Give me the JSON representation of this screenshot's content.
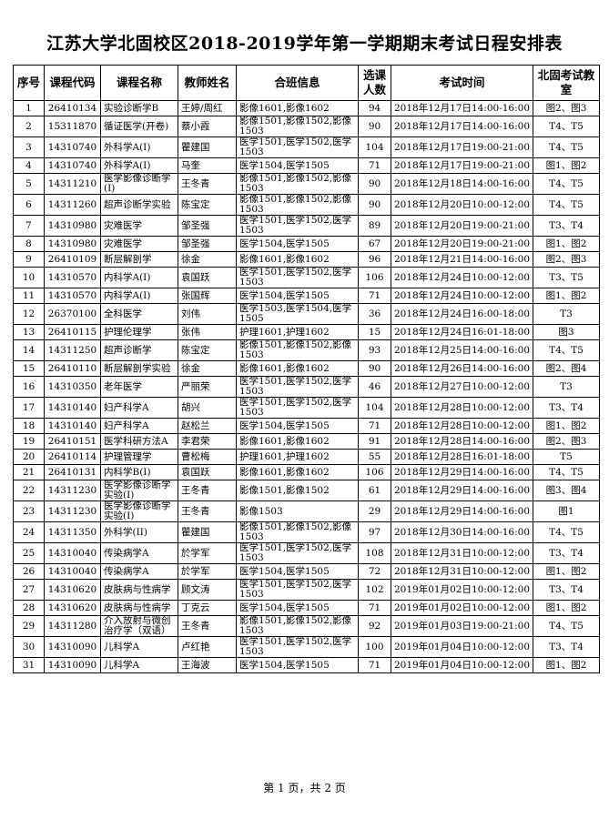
{
  "title": "江苏大学北固校区2018-2019学年第一学期期末考试日程安排表",
  "columns": [
    "序号",
    "课程代码",
    "课程名称",
    "教师姓名",
    "合班信息",
    "选课人数",
    "考试时间",
    "北固考试教　室"
  ],
  "rows": [
    [
      "1",
      "26410134",
      "实验诊断学B",
      "王婷/周红",
      "影像1601,影像1602",
      "94",
      "2018年12月17日14:00-16:00",
      "图2、图3"
    ],
    [
      "2",
      "15311870",
      "循证医学(开卷)",
      "蔡小霞",
      "影像1501,影像1502,影像1503",
      "90",
      "2018年12月17日14:00-16:00",
      "T4、T5"
    ],
    [
      "3",
      "14310740",
      "外科学A(I)",
      "瞿建国",
      "医学1501,医学1502,医学1503",
      "104",
      "2018年12月17日19:00-21:00",
      "T4、T5"
    ],
    [
      "4",
      "14310740",
      "外科学A(I)",
      "马奎",
      "医学1504,医学1505",
      "71",
      "2018年12月17日19:00-21:00",
      "图1、图2"
    ],
    [
      "5",
      "14311210",
      "医学影像诊断学(I)",
      "王冬青",
      "影像1501,影像1502,影像1503",
      "90",
      "2018年12月18日14:00-16:00",
      "T4、T5"
    ],
    [
      "6",
      "14311260",
      "超声诊断学实验",
      "陈宝定",
      "影像1501,影像1502,影像1503",
      "90",
      "2018年12月20日10:00-12:00",
      "T4、T5"
    ],
    [
      "7",
      "14310980",
      "灾难医学",
      "邹圣强",
      "医学1501,医学1502,医学1503",
      "89",
      "2018年12月20日19:00-21:00",
      "T3、T4"
    ],
    [
      "8",
      "14310980",
      "灾难医学",
      "邹圣强",
      "医学1504,医学1505",
      "67",
      "2018年12月20日19:00-21:00",
      "图1、图2"
    ],
    [
      "9",
      "26410109",
      "断层解剖学",
      "徐金",
      "影像1601,影像1602",
      "96",
      "2018年12月21日14:00-16:00",
      "图2、图3"
    ],
    [
      "10",
      "14310570",
      "内科学A(I)",
      "袁国跃",
      "医学1501,医学1502,医学1503",
      "106",
      "2018年12月24日10:00-12:00",
      "T3、T5"
    ],
    [
      "11",
      "14310570",
      "内科学A(I)",
      "张国辉",
      "医学1504,医学1505",
      "71",
      "2018年12月24日10:00-12:00",
      "图1、图2"
    ],
    [
      "12",
      "26370100",
      "全科医学",
      "刘伟",
      "医学1503,医学1504,医学1505",
      "36",
      "2018年12月24日16:00-18:00",
      "T3"
    ],
    [
      "13",
      "26410115",
      "护理伦理学",
      "张伟",
      "护理1601,护理1602",
      "15",
      "2018年12月24日16:01-18:00",
      "图3"
    ],
    [
      "14",
      "14311250",
      "超声诊断学",
      "陈宝定",
      "影像1501,影像1502,影像1503",
      "93",
      "2018年12月25日14:00-16:00",
      "T4、T5"
    ],
    [
      "15",
      "26410110",
      "断层解剖学实验",
      "徐金",
      "影像1601,影像1602",
      "90",
      "2018年12月26日14:00-16:00",
      "图2、图4"
    ],
    [
      "16",
      "14310350",
      "老年医学",
      "严丽荣",
      "医学1501,医学1502,医学1503",
      "46",
      "2018年12月27日10:00-12:00",
      "T3"
    ],
    [
      "17",
      "14310140",
      "妇产科学A",
      "胡兴",
      "医学1501,医学1502,医学1503",
      "104",
      "2018年12月28日10:00-12:00",
      "T3、T4"
    ],
    [
      "18",
      "14310140",
      "妇产科学A",
      "赵松兰",
      "医学1504,医学1505",
      "71",
      "2018年12月28日10:00-12:00",
      "图1、图2"
    ],
    [
      "19",
      "26410151",
      "医学科研方法A",
      "李君荣",
      "影像1601,影像1602",
      "91",
      "2018年12月28日14:00-16:00",
      "图2、图3"
    ],
    [
      "20",
      "26410114",
      "护理管理学",
      "曹松梅",
      "护理1601,护理1602",
      "55",
      "2018年12月28日16:01-18:00",
      "T5"
    ],
    [
      "21",
      "26410131",
      "内科学B(I)",
      "袁国跃",
      "影像1601,影像1602",
      "106",
      "2018年12月29日14:00-16:00",
      "T4、T5"
    ],
    [
      "22",
      "14311230",
      "医学影像诊断学实验(I)",
      "王冬青",
      "影像1501,影像1502",
      "61",
      "2018年12月29日14:00-16:00",
      "图3、图4"
    ],
    [
      "23",
      "14311230",
      "医学影像诊断学实验(I)",
      "王冬青",
      "影像1503",
      "29",
      "2018年12月29日14:00-16:00",
      "图1"
    ],
    [
      "24",
      "14311350",
      "外科学(II)",
      "瞿建国",
      "影像1501,影像1502,影像1503",
      "97",
      "2018年12月30日14:00-16:00",
      "T4、T5"
    ],
    [
      "25",
      "14310040",
      "传染病学A",
      "於学军",
      "医学1501,医学1502,医学1503",
      "108",
      "2018年12月31日10:00-12:00",
      "T3、T4"
    ],
    [
      "26",
      "14310040",
      "传染病学A",
      "於学军",
      "医学1504,医学1505",
      "72",
      "2018年12月31日10:00-12:00",
      "图1、图2"
    ],
    [
      "27",
      "14310620",
      "皮肤病与性病学",
      "顾文涛",
      "医学1501,医学1502,医学1503",
      "102",
      "2019年01月02日10:00-12:00",
      "T3、T4"
    ],
    [
      "28",
      "14310620",
      "皮肤病与性病学",
      "丁克云",
      "医学1504,医学1505",
      "71",
      "2019年01月02日10:00-12:00",
      "图1、图2"
    ],
    [
      "29",
      "14311280",
      "介入放射与微创治疗学（双语）",
      "王冬青",
      "影像1501,影像1502,影像1503",
      "92",
      "2019年01月03日19:00-21:00",
      "T4、T5"
    ],
    [
      "30",
      "14310090",
      "儿科学A",
      "卢红艳",
      "医学1501,医学1502,医学1503",
      "100",
      "2019年01月04日10:00-12:00",
      "T3、T4"
    ],
    [
      "31",
      "14310090",
      "儿科学A",
      "王海波",
      "医学1504,医学1505",
      "71",
      "2019年01月04日10:00-12:00",
      "图1、图2"
    ]
  ],
  "footer": "第 1 页，共 2 页"
}
